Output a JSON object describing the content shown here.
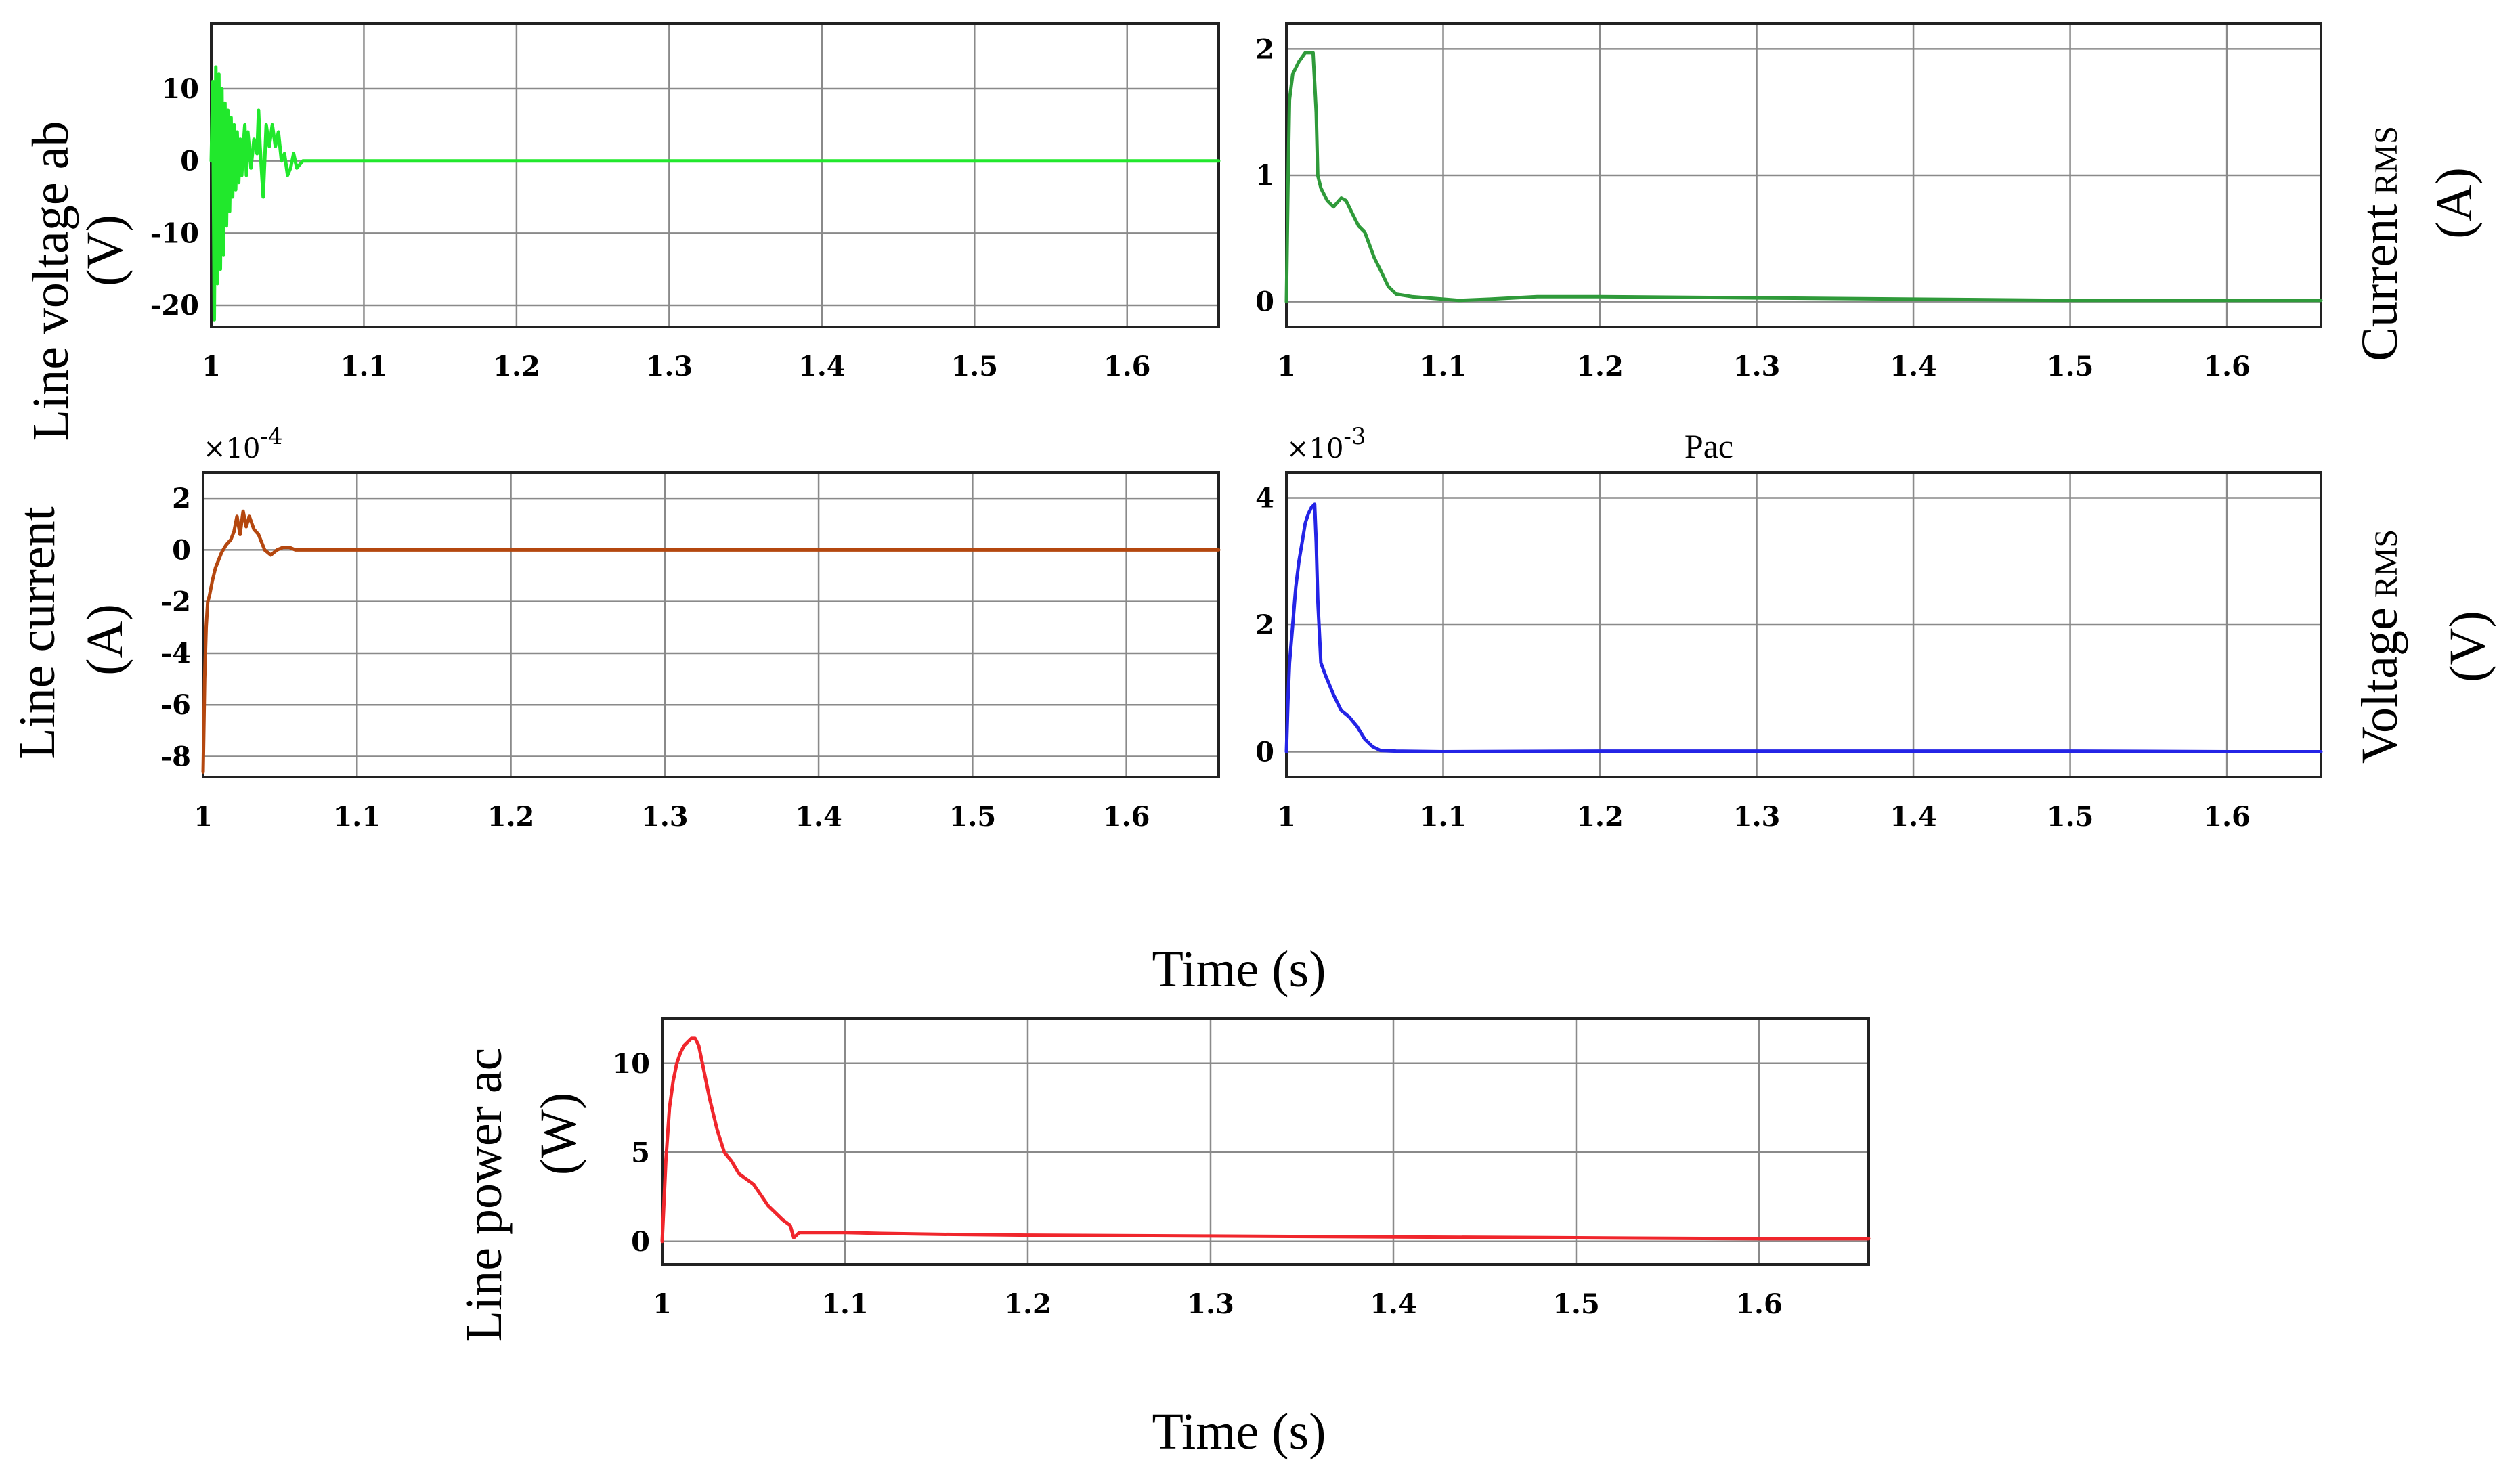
{
  "chart_data": [
    {
      "id": "voltage_ab",
      "type": "line",
      "title": "",
      "ylabel": "Line voltage ab",
      "yunit": "(V)",
      "xlim": [
        1,
        1.66
      ],
      "ylim": [
        -23,
        19
      ],
      "xticks": [
        1,
        1.1,
        1.2,
        1.3,
        1.4,
        1.5,
        1.6
      ],
      "xtick_labels": [
        "1",
        "1.1",
        "1.2",
        "1.3",
        "1.4",
        "1.5",
        "1.6"
      ],
      "yticks": [
        -20,
        -10,
        0,
        10
      ],
      "ytick_labels": [
        "-20",
        "-10",
        "0",
        "10"
      ],
      "color": "#21e82c",
      "series": [
        {
          "x": [
            1.0,
            1.001,
            1.002,
            1.003,
            1.004,
            1.005,
            1.006,
            1.007,
            1.008,
            1.009,
            1.01,
            1.011,
            1.012,
            1.013,
            1.014,
            1.015,
            1.016,
            1.017,
            1.018,
            1.019,
            1.02,
            1.021,
            1.022,
            1.023,
            1.024,
            1.026,
            1.028,
            1.03,
            1.031,
            1.032,
            1.034,
            1.036,
            1.038,
            1.04,
            1.042,
            1.044,
            1.046,
            1.048,
            1.05,
            1.052,
            1.054,
            1.056,
            1.06,
            1.1,
            1.2,
            1.3,
            1.4,
            1.5,
            1.6,
            1.66
          ],
          "values": [
            0,
            11,
            -22,
            13,
            -17,
            12,
            -15,
            10,
            -13,
            8,
            -9,
            7,
            -7,
            6,
            -5,
            5,
            -4,
            4,
            -3,
            3,
            -2,
            2,
            5,
            -2,
            4,
            -1,
            3,
            1,
            7,
            2,
            -5,
            5,
            2,
            5,
            2,
            4,
            0,
            1,
            -2,
            -1,
            1,
            -1,
            0,
            0,
            0,
            0,
            0,
            0,
            0,
            0
          ]
        }
      ]
    },
    {
      "id": "current_rms",
      "type": "line",
      "title": "",
      "ylabel": "Current",
      "ylabel_sub": "RMS",
      "yunit": "(A)",
      "xlim": [
        1,
        1.66
      ],
      "ylim": [
        -0.2,
        2.2
      ],
      "xticks": [
        1,
        1.1,
        1.2,
        1.3,
        1.4,
        1.5,
        1.6
      ],
      "xtick_labels": [
        "1",
        "1.1",
        "1.2",
        "1.3",
        "1.4",
        "1.5",
        "1.6"
      ],
      "yticks": [
        0,
        1,
        2
      ],
      "ytick_labels": [
        "0",
        "1",
        "2"
      ],
      "color": "#2f9a3a",
      "series": [
        {
          "x": [
            1.0,
            1.001,
            1.002,
            1.004,
            1.006,
            1.008,
            1.012,
            1.017,
            1.019,
            1.02,
            1.022,
            1.026,
            1.03,
            1.035,
            1.038,
            1.042,
            1.046,
            1.05,
            1.056,
            1.06,
            1.065,
            1.07,
            1.08,
            1.09,
            1.1,
            1.11,
            1.13,
            1.16,
            1.2,
            1.3,
            1.4,
            1.5,
            1.6,
            1.66
          ],
          "values": [
            0.0,
            0.9,
            1.6,
            1.8,
            1.85,
            1.9,
            1.97,
            1.97,
            1.5,
            1.0,
            0.9,
            0.8,
            0.75,
            0.82,
            0.8,
            0.7,
            0.6,
            0.55,
            0.35,
            0.25,
            0.12,
            0.06,
            0.04,
            0.03,
            0.02,
            0.01,
            0.02,
            0.04,
            0.04,
            0.03,
            0.02,
            0.01,
            0.01,
            0.01
          ]
        }
      ]
    },
    {
      "id": "line_current",
      "type": "line",
      "title": "",
      "ylabel": "Line current",
      "yunit": "(A)",
      "exponent": "×10",
      "exponent_power": "-4",
      "xlim": [
        1,
        1.66
      ],
      "ylim": [
        -8.8,
        3
      ],
      "xticks": [
        1,
        1.1,
        1.2,
        1.3,
        1.4,
        1.5,
        1.6
      ],
      "xtick_labels": [
        "1",
        "1.1",
        "1.2",
        "1.3",
        "1.4",
        "1.5",
        "1.6"
      ],
      "yticks": [
        -8,
        -6,
        -4,
        -2,
        0,
        2
      ],
      "ytick_labels": [
        "-8",
        "-6",
        "-4",
        "-2",
        "0",
        "2"
      ],
      "color": "#b4470f",
      "series": [
        {
          "x": [
            1.0,
            1.001,
            1.002,
            1.003,
            1.004,
            1.006,
            1.008,
            1.01,
            1.012,
            1.015,
            1.018,
            1.02,
            1.022,
            1.024,
            1.026,
            1.028,
            1.03,
            1.033,
            1.036,
            1.04,
            1.044,
            1.048,
            1.052,
            1.056,
            1.06,
            1.1,
            1.2,
            1.3,
            1.4,
            1.5,
            1.6,
            1.66
          ],
          "values": [
            -8.6,
            -5.0,
            -3.0,
            -2.0,
            -1.8,
            -1.2,
            -0.7,
            -0.4,
            -0.1,
            0.2,
            0.4,
            0.7,
            1.3,
            0.6,
            1.5,
            0.9,
            1.3,
            0.8,
            0.6,
            0.0,
            -0.2,
            0.0,
            0.1,
            0.1,
            0.0,
            0.0,
            0.0,
            0.0,
            0.0,
            0.0,
            0.0,
            0.0
          ]
        }
      ]
    },
    {
      "id": "voltage_rms",
      "type": "line",
      "title": "Pac",
      "ylabel": "Voltage",
      "ylabel_sub": "RMS",
      "yunit": "(V)",
      "exponent": "×10",
      "exponent_power": "-3",
      "xlim": [
        1,
        1.66
      ],
      "ylim": [
        -0.4,
        4.4
      ],
      "xticks": [
        1,
        1.1,
        1.2,
        1.3,
        1.4,
        1.5,
        1.6
      ],
      "xtick_labels": [
        "1",
        "1.1",
        "1.2",
        "1.3",
        "1.4",
        "1.5",
        "1.6"
      ],
      "yticks": [
        0,
        2,
        4
      ],
      "ytick_labels": [
        "0",
        "2",
        "4"
      ],
      "color": "#2424e6",
      "series": [
        {
          "x": [
            1.0,
            1.001,
            1.002,
            1.004,
            1.006,
            1.008,
            1.01,
            1.012,
            1.014,
            1.016,
            1.018,
            1.019,
            1.02,
            1.022,
            1.025,
            1.03,
            1.035,
            1.04,
            1.045,
            1.05,
            1.055,
            1.06,
            1.07,
            1.1,
            1.2,
            1.3,
            1.4,
            1.5,
            1.6,
            1.66
          ],
          "values": [
            0.0,
            0.8,
            1.4,
            2.0,
            2.6,
            3.0,
            3.3,
            3.6,
            3.75,
            3.85,
            3.9,
            3.3,
            2.4,
            1.4,
            1.2,
            0.9,
            0.65,
            0.55,
            0.4,
            0.2,
            0.08,
            0.02,
            0.01,
            0.0,
            0.01,
            0.01,
            0.01,
            0.01,
            0.0,
            0.0
          ]
        }
      ]
    },
    {
      "id": "line_power",
      "type": "line",
      "title": "",
      "ylabel": "Line power ac",
      "yunit": "(W)",
      "xlabel": "Time (s)",
      "xlim": [
        1,
        1.66
      ],
      "ylim": [
        -1.3,
        12.5
      ],
      "xticks": [
        1,
        1.1,
        1.2,
        1.3,
        1.4,
        1.5,
        1.6
      ],
      "xtick_labels": [
        "1",
        "1.1",
        "1.2",
        "1.3",
        "1.4",
        "1.5",
        "1.6"
      ],
      "yticks": [
        0,
        5,
        10
      ],
      "ytick_labels": [
        "0",
        "5",
        "10"
      ],
      "color": "#f0262c",
      "series": [
        {
          "x": [
            1.0,
            1.002,
            1.004,
            1.006,
            1.008,
            1.01,
            1.012,
            1.014,
            1.016,
            1.018,
            1.02,
            1.022,
            1.026,
            1.03,
            1.034,
            1.038,
            1.042,
            1.046,
            1.05,
            1.054,
            1.058,
            1.062,
            1.066,
            1.07,
            1.072,
            1.075,
            1.08,
            1.09,
            1.1,
            1.12,
            1.15,
            1.2,
            1.3,
            1.4,
            1.5,
            1.6,
            1.66
          ],
          "values": [
            0,
            4.5,
            7.5,
            9.0,
            10.0,
            10.6,
            11.0,
            11.2,
            11.4,
            11.4,
            11.0,
            10.0,
            8.0,
            6.3,
            5.0,
            4.5,
            3.8,
            3.5,
            3.2,
            2.6,
            2.0,
            1.6,
            1.2,
            0.9,
            0.2,
            0.5,
            0.5,
            0.5,
            0.5,
            0.45,
            0.4,
            0.35,
            0.3,
            0.25,
            0.2,
            0.15,
            0.15
          ]
        }
      ]
    }
  ],
  "shared_xlabel": "Time (s)"
}
